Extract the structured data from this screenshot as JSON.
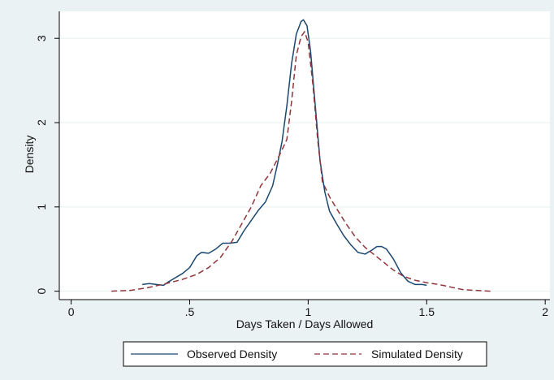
{
  "chart_data": {
    "type": "line",
    "title": "",
    "xlabel": "Days Taken / Days Allowed",
    "ylabel": "Density",
    "xlim": [
      -0.05,
      2.02
    ],
    "ylim": [
      -0.1,
      3.32
    ],
    "x_ticks": [
      0,
      0.5,
      1,
      1.5,
      2
    ],
    "x_tick_labels": [
      "0",
      ".5",
      "1",
      "1.5",
      "2"
    ],
    "y_ticks": [
      0,
      1,
      2,
      3
    ],
    "y_tick_labels": [
      "0",
      "1",
      "2",
      "3"
    ],
    "grid": "horizontal",
    "legend_position": "bottom",
    "colors": {
      "background": "#eaf2f3",
      "plot_area": "#ffffff",
      "grid": "#e8eff0",
      "observed": "#1a476f",
      "simulated": "#90353b"
    },
    "series": [
      {
        "name": "Observed Density",
        "style": "solid",
        "points": [
          [
            0.3,
            0.08
          ],
          [
            0.33,
            0.09
          ],
          [
            0.36,
            0.08
          ],
          [
            0.39,
            0.07
          ],
          [
            0.41,
            0.11
          ],
          [
            0.44,
            0.16
          ],
          [
            0.47,
            0.21
          ],
          [
            0.5,
            0.28
          ],
          [
            0.53,
            0.42
          ],
          [
            0.55,
            0.46
          ],
          [
            0.58,
            0.45
          ],
          [
            0.61,
            0.5
          ],
          [
            0.64,
            0.57
          ],
          [
            0.67,
            0.57
          ],
          [
            0.7,
            0.58
          ],
          [
            0.73,
            0.72
          ],
          [
            0.76,
            0.84
          ],
          [
            0.79,
            0.96
          ],
          [
            0.82,
            1.06
          ],
          [
            0.85,
            1.25
          ],
          [
            0.87,
            1.5
          ],
          [
            0.89,
            1.78
          ],
          [
            0.91,
            2.2
          ],
          [
            0.93,
            2.7
          ],
          [
            0.95,
            3.05
          ],
          [
            0.97,
            3.2
          ],
          [
            0.98,
            3.22
          ],
          [
            0.995,
            3.15
          ],
          [
            1.01,
            2.85
          ],
          [
            1.03,
            2.2
          ],
          [
            1.05,
            1.55
          ],
          [
            1.07,
            1.18
          ],
          [
            1.09,
            0.95
          ],
          [
            1.12,
            0.8
          ],
          [
            1.15,
            0.66
          ],
          [
            1.18,
            0.55
          ],
          [
            1.21,
            0.46
          ],
          [
            1.24,
            0.44
          ],
          [
            1.27,
            0.49
          ],
          [
            1.29,
            0.53
          ],
          [
            1.31,
            0.53
          ],
          [
            1.33,
            0.5
          ],
          [
            1.36,
            0.38
          ],
          [
            1.39,
            0.22
          ],
          [
            1.42,
            0.12
          ],
          [
            1.45,
            0.08
          ],
          [
            1.48,
            0.08
          ],
          [
            1.5,
            0.07
          ]
        ]
      },
      {
        "name": "Simulated Density",
        "style": "dashed",
        "points": [
          [
            0.17,
            0.0
          ],
          [
            0.25,
            0.01
          ],
          [
            0.32,
            0.04
          ],
          [
            0.4,
            0.09
          ],
          [
            0.47,
            0.14
          ],
          [
            0.53,
            0.2
          ],
          [
            0.58,
            0.28
          ],
          [
            0.63,
            0.4
          ],
          [
            0.68,
            0.6
          ],
          [
            0.72,
            0.8
          ],
          [
            0.76,
            1.0
          ],
          [
            0.8,
            1.25
          ],
          [
            0.84,
            1.4
          ],
          [
            0.88,
            1.62
          ],
          [
            0.91,
            1.8
          ],
          [
            0.93,
            2.25
          ],
          [
            0.95,
            2.8
          ],
          [
            0.97,
            3.02
          ],
          [
            0.985,
            3.08
          ],
          [
            1.0,
            2.95
          ],
          [
            1.02,
            2.45
          ],
          [
            1.04,
            1.8
          ],
          [
            1.06,
            1.3
          ],
          [
            1.09,
            1.12
          ],
          [
            1.12,
            0.98
          ],
          [
            1.16,
            0.8
          ],
          [
            1.2,
            0.64
          ],
          [
            1.24,
            0.52
          ],
          [
            1.28,
            0.43
          ],
          [
            1.32,
            0.34
          ],
          [
            1.36,
            0.25
          ],
          [
            1.4,
            0.18
          ],
          [
            1.45,
            0.13
          ],
          [
            1.5,
            0.1
          ],
          [
            1.55,
            0.08
          ],
          [
            1.6,
            0.05
          ],
          [
            1.65,
            0.02
          ],
          [
            1.7,
            0.01
          ],
          [
            1.77,
            0.0
          ]
        ]
      }
    ]
  }
}
